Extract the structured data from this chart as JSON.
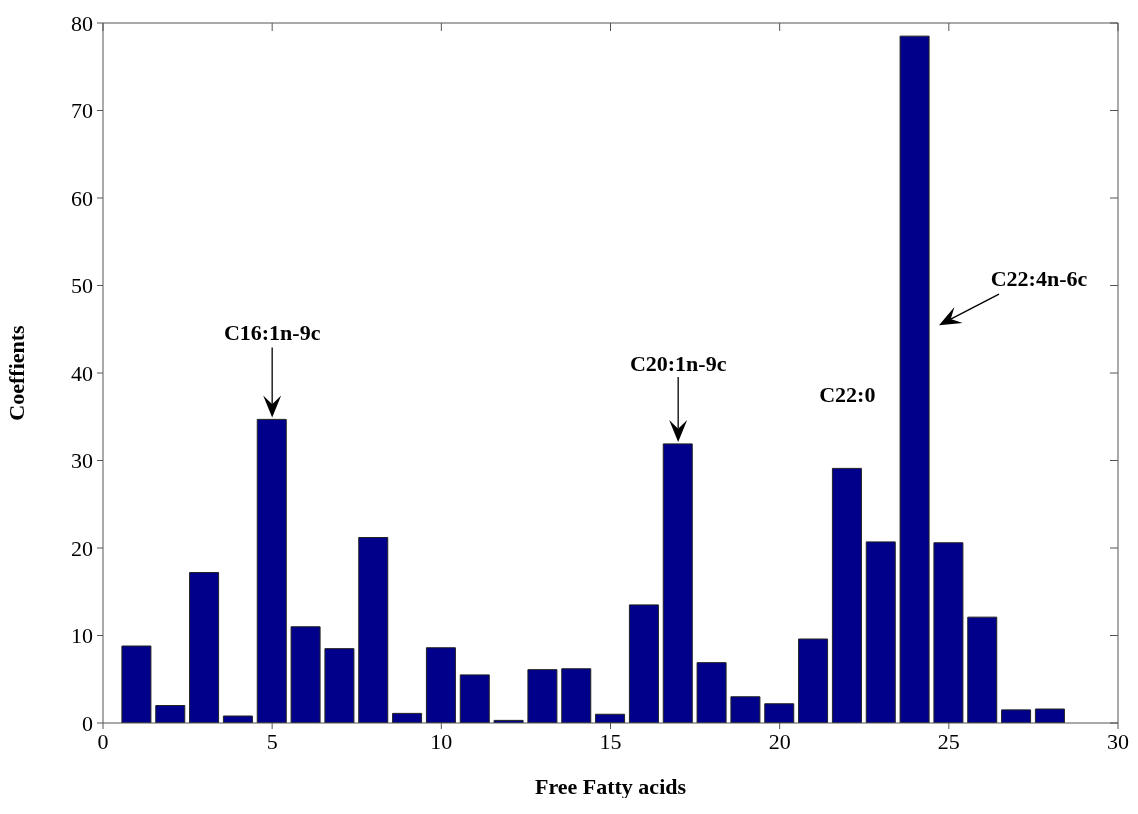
{
  "chart_data": {
    "type": "bar",
    "xlabel": "Free Fatty acids",
    "ylabel": "Coeffients",
    "x": [
      1,
      2,
      3,
      4,
      5,
      6,
      7,
      8,
      9,
      10,
      11,
      12,
      13,
      14,
      15,
      16,
      17,
      18,
      19,
      20,
      21,
      22,
      23,
      24,
      25,
      26,
      27,
      28
    ],
    "values": [
      8.8,
      2.0,
      17.2,
      0.8,
      34.7,
      11.0,
      8.5,
      21.2,
      1.1,
      8.6,
      5.5,
      0.3,
      6.1,
      6.2,
      1.0,
      13.5,
      31.9,
      6.9,
      3.0,
      2.2,
      9.6,
      29.1,
      20.7,
      78.5,
      20.6,
      12.1,
      1.5,
      1.6
    ],
    "color": "#00008b",
    "xlim": [
      0,
      30
    ],
    "xticks": [
      0,
      5,
      10,
      15,
      20,
      25,
      30
    ],
    "ylim": [
      0,
      80
    ],
    "yticks": [
      0,
      10,
      20,
      30,
      40,
      50,
      60,
      70,
      80
    ],
    "grid": false,
    "legend": false,
    "annotations": [
      "C16:1n-9c",
      "C20:1n-9c",
      "C22:0",
      "C22:4n-6c"
    ]
  }
}
